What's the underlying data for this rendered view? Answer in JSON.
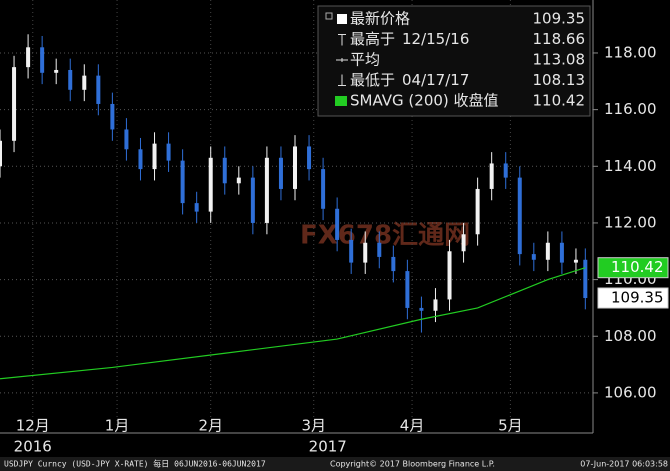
{
  "chart_data": {
    "type": "candlestick",
    "x": [
      0,
      3,
      6,
      9,
      12,
      15,
      18,
      21,
      24,
      27,
      30,
      33,
      36,
      39,
      42,
      45,
      48,
      51,
      54,
      57,
      60,
      63,
      66,
      69,
      72,
      75,
      78,
      81,
      84,
      87,
      90,
      93,
      96,
      99,
      102,
      105,
      108,
      111,
      114,
      117,
      120,
      123,
      125
    ],
    "open": [
      114.0,
      114.9,
      117.5,
      118.2,
      117.3,
      117.4,
      116.7,
      117.2,
      116.2,
      115.3,
      114.6,
      113.9,
      114.8,
      114.2,
      112.7,
      112.4,
      114.3,
      113.4,
      113.6,
      112.0,
      114.3,
      113.2,
      114.7,
      113.9,
      112.5,
      111.4,
      110.6,
      111.3,
      110.8,
      110.3,
      109.0,
      108.9,
      109.3,
      111.0,
      111.6,
      113.2,
      114.1,
      113.6,
      110.9,
      110.7,
      111.3,
      110.6,
      110.7
    ],
    "high": [
      115.3,
      117.9,
      118.66,
      118.6,
      117.8,
      117.8,
      117.6,
      117.6,
      116.6,
      115.7,
      115.0,
      115.2,
      115.2,
      114.6,
      113.1,
      114.7,
      114.7,
      114.0,
      114.0,
      114.7,
      114.7,
      115.1,
      115.1,
      114.3,
      112.9,
      111.8,
      111.7,
      111.7,
      111.2,
      110.7,
      109.4,
      109.7,
      111.4,
      112.0,
      113.6,
      114.5,
      114.5,
      114.0,
      111.3,
      111.7,
      111.7,
      111.1,
      111.1
    ],
    "low": [
      113.6,
      114.5,
      117.1,
      116.9,
      116.9,
      116.3,
      116.3,
      115.8,
      114.9,
      114.2,
      113.5,
      113.5,
      113.8,
      112.3,
      112.0,
      112.0,
      113.0,
      113.0,
      111.6,
      111.6,
      112.8,
      112.8,
      113.5,
      112.1,
      111.0,
      110.2,
      110.2,
      110.4,
      109.9,
      108.6,
      108.13,
      108.5,
      108.9,
      110.6,
      111.2,
      112.8,
      113.2,
      110.5,
      110.3,
      110.3,
      110.2,
      110.2,
      108.95
    ],
    "close": [
      114.9,
      117.5,
      118.2,
      117.3,
      117.4,
      116.7,
      117.2,
      116.2,
      115.3,
      114.6,
      113.9,
      114.8,
      114.2,
      112.7,
      112.4,
      114.3,
      113.4,
      113.6,
      112.0,
      114.3,
      113.2,
      114.7,
      113.9,
      112.5,
      111.4,
      110.6,
      111.3,
      110.8,
      110.3,
      109.0,
      108.9,
      109.3,
      111.0,
      111.6,
      113.2,
      114.1,
      113.6,
      110.9,
      110.7,
      111.3,
      110.6,
      110.7,
      109.35
    ],
    "up_color": "#f2f2f2",
    "down_color": "#2f6fd8",
    "sma": {
      "name": "SMAVG (200) 收盘值",
      "color": "#22cc22",
      "x": [
        0,
        24,
        48,
        72,
        90,
        102,
        111,
        117,
        125
      ],
      "values": [
        106.5,
        106.9,
        107.4,
        107.9,
        108.6,
        109.0,
        109.6,
        110.0,
        110.42
      ]
    },
    "legend_items": [
      {
        "label": "最新价格",
        "value": 109.35
      },
      {
        "label": "最高于",
        "date": "12/15/16",
        "value": 118.66
      },
      {
        "label": "平均",
        "value": 113.08
      },
      {
        "label": "最低于",
        "date": "04/17/17",
        "value": 108.13
      }
    ],
    "xlim": [
      0,
      126
    ],
    "xticks": [
      {
        "value": 7,
        "label": "12月"
      },
      {
        "value": 25,
        "label": "1月"
      },
      {
        "value": 45,
        "label": "2月"
      },
      {
        "value": 67,
        "label": "3月"
      },
      {
        "value": 88,
        "label": "4月"
      },
      {
        "value": 109,
        "label": "5月"
      }
    ],
    "years": [
      {
        "value": 7,
        "label": "2016"
      },
      {
        "value": 70,
        "label": "2017"
      }
    ],
    "ylim": [
      104.62,
      119.87
    ],
    "yticks": [
      {
        "value": 106,
        "label": "106.00"
      },
      {
        "value": 108,
        "label": "108.00"
      },
      {
        "value": 110,
        "label": "110.00"
      },
      {
        "value": 112,
        "label": "112.00"
      },
      {
        "value": 114,
        "label": "114.00"
      },
      {
        "value": 116,
        "label": "116.00"
      },
      {
        "value": 118,
        "label": "118.00"
      }
    ],
    "grid": true,
    "watermark": "FX678汇通网",
    "source": "USDJPY Curncy (USD-JPY X-RATE) 每日 06JUN2016-06JUN2017",
    "copyright": "Copyright© 2017 Bloomberg Finance L.P.",
    "timestamp": "07-Jun-2017 06:03:58"
  }
}
